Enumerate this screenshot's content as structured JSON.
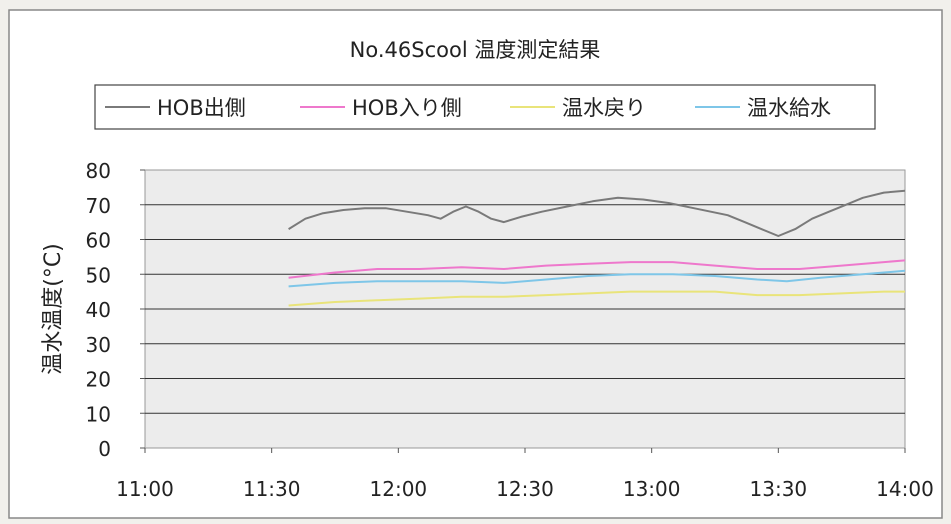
{
  "chart_data": {
    "type": "line",
    "title": "No.46Scool 温度測定結果",
    "xlabel": "",
    "ylabel": "温水温度(°C)",
    "xlim": [
      "11:00",
      "14:00"
    ],
    "ylim": [
      0,
      80
    ],
    "x_ticks": [
      "11:00",
      "11:30",
      "12:00",
      "12:30",
      "13:00",
      "13:30",
      "14:00"
    ],
    "y_ticks": [
      0,
      10,
      20,
      30,
      40,
      50,
      60,
      70,
      80
    ],
    "grid": true,
    "legend_position": "top",
    "series": [
      {
        "name": "HOB出側",
        "color": "#7a7a7a",
        "points": [
          [
            "11:34",
            63
          ],
          [
            "11:38",
            66
          ],
          [
            "11:42",
            67.5
          ],
          [
            "11:47",
            68.5
          ],
          [
            "11:52",
            69
          ],
          [
            "11:57",
            69
          ],
          [
            "12:02",
            68
          ],
          [
            "12:07",
            67
          ],
          [
            "12:10",
            66
          ],
          [
            "12:13",
            68
          ],
          [
            "12:16",
            69.5
          ],
          [
            "12:19",
            68
          ],
          [
            "12:22",
            66
          ],
          [
            "12:25",
            65
          ],
          [
            "12:29",
            66.5
          ],
          [
            "12:34",
            68
          ],
          [
            "12:40",
            69.5
          ],
          [
            "12:46",
            71
          ],
          [
            "12:52",
            72
          ],
          [
            "12:58",
            71.5
          ],
          [
            "13:04",
            70.5
          ],
          [
            "13:10",
            69
          ],
          [
            "13:14",
            68
          ],
          [
            "13:18",
            67
          ],
          [
            "13:22",
            65
          ],
          [
            "13:26",
            63
          ],
          [
            "13:30",
            61
          ],
          [
            "13:34",
            63
          ],
          [
            "13:38",
            66
          ],
          [
            "13:42",
            68
          ],
          [
            "13:46",
            70
          ],
          [
            "13:50",
            72
          ],
          [
            "13:55",
            73.5
          ],
          [
            "14:00",
            74
          ]
        ]
      },
      {
        "name": "HOB入り側",
        "color": "#ee78cc",
        "points": [
          [
            "11:34",
            49
          ],
          [
            "11:45",
            50.5
          ],
          [
            "11:55",
            51.5
          ],
          [
            "12:05",
            51.5
          ],
          [
            "12:15",
            52
          ],
          [
            "12:25",
            51.5
          ],
          [
            "12:35",
            52.5
          ],
          [
            "12:45",
            53
          ],
          [
            "12:55",
            53.5
          ],
          [
            "13:05",
            53.5
          ],
          [
            "13:15",
            52.5
          ],
          [
            "13:25",
            51.5
          ],
          [
            "13:35",
            51.5
          ],
          [
            "13:45",
            52.5
          ],
          [
            "13:55",
            53.5
          ],
          [
            "14:00",
            54
          ]
        ]
      },
      {
        "name": "温水戻り",
        "color": "#e9e47a",
        "points": [
          [
            "11:34",
            41
          ],
          [
            "11:45",
            42
          ],
          [
            "11:55",
            42.5
          ],
          [
            "12:05",
            43
          ],
          [
            "12:15",
            43.5
          ],
          [
            "12:25",
            43.5
          ],
          [
            "12:35",
            44
          ],
          [
            "12:45",
            44.5
          ],
          [
            "12:55",
            45
          ],
          [
            "13:05",
            45
          ],
          [
            "13:15",
            45
          ],
          [
            "13:25",
            44
          ],
          [
            "13:35",
            44
          ],
          [
            "13:45",
            44.5
          ],
          [
            "13:55",
            45
          ],
          [
            "14:00",
            45
          ]
        ]
      },
      {
        "name": "温水給水",
        "color": "#7ec6e8",
        "points": [
          [
            "11:34",
            46.5
          ],
          [
            "11:45",
            47.5
          ],
          [
            "11:55",
            48
          ],
          [
            "12:05",
            48
          ],
          [
            "12:15",
            48
          ],
          [
            "12:25",
            47.5
          ],
          [
            "12:35",
            48.5
          ],
          [
            "12:45",
            49.5
          ],
          [
            "12:55",
            50
          ],
          [
            "13:05",
            50
          ],
          [
            "13:15",
            49.5
          ],
          [
            "13:25",
            48.5
          ],
          [
            "13:32",
            48
          ],
          [
            "13:40",
            49
          ],
          [
            "13:50",
            50
          ],
          [
            "14:00",
            51
          ]
        ]
      }
    ]
  }
}
